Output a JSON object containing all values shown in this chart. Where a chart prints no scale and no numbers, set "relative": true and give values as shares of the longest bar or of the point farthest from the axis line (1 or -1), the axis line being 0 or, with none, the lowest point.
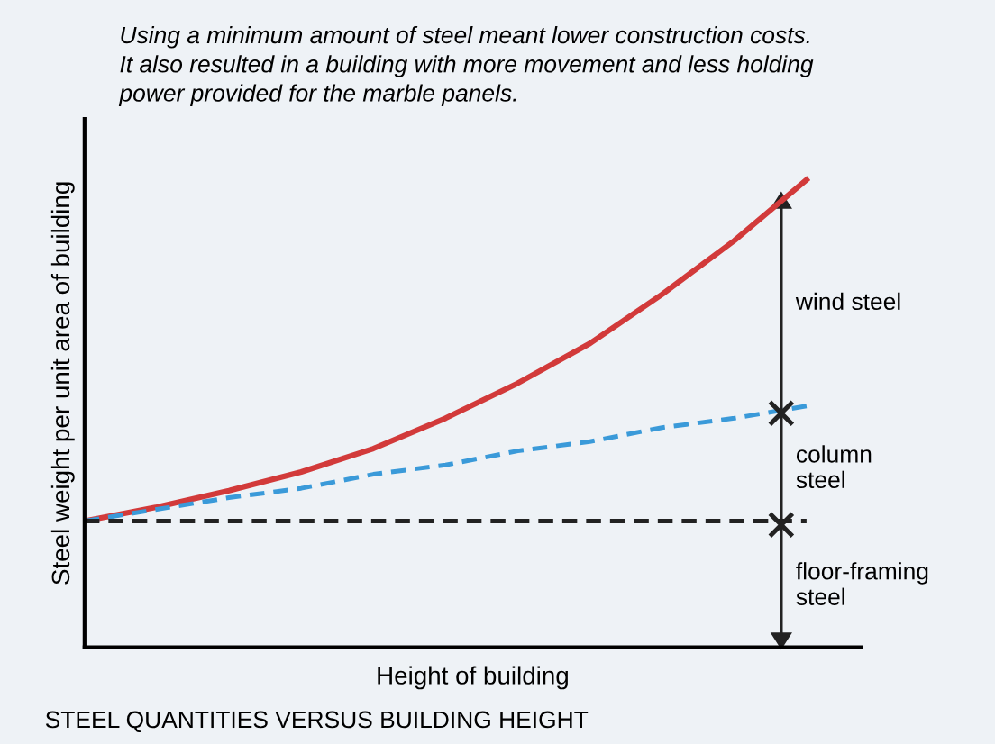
{
  "chart_data": {
    "type": "line",
    "relative": true,
    "xlabel": "Height of building",
    "ylabel": "Steel weight per unit area of building",
    "categories": [
      null,
      null,
      null,
      null,
      null,
      null,
      null,
      null,
      null,
      null,
      null
    ],
    "series": [
      {
        "color": "#d23a3a",
        "line_style": "solid",
        "values": [
          0.27,
          0.3,
          0.335,
          0.375,
          0.425,
          0.49,
          0.565,
          0.65,
          0.755,
          0.87,
          1.0
        ]
      },
      {
        "color": "#3a9ad9",
        "line_style": "dashed",
        "values": [
          0.27,
          0.295,
          0.32,
          0.34,
          0.37,
          0.39,
          0.42,
          0.44,
          0.47,
          0.49,
          0.516
        ]
      },
      {
        "color": "#222222",
        "line_style": "dashed",
        "values": [
          0.27,
          0.27,
          0.27,
          0.27,
          0.27,
          0.27,
          0.27,
          0.27,
          0.27,
          0.27,
          0.27
        ]
      }
    ],
    "annotations": [
      "Using a minimum amount of steel meant lower construction costs.\nIt also resulted in a building with more movement and less holding\npower provided for the marble panels.",
      "STEEL QUANTITIES VERSUS BUILDING HEIGHT",
      "wind steel",
      "column\nsteel",
      "floor-framing\nsteel"
    ],
    "grid": false,
    "legend": false,
    "marker": "none"
  }
}
